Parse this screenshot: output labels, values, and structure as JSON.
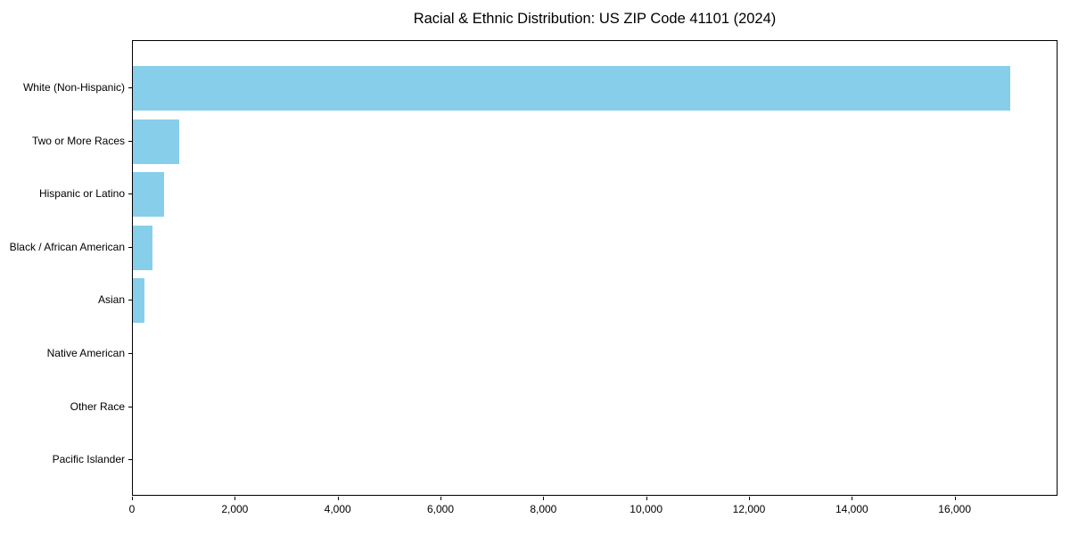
{
  "title": "Racial & Ethnic Distribution: US ZIP Code 41101 (2024)",
  "chart_data": {
    "type": "bar",
    "orientation": "horizontal",
    "title": "Racial & Ethnic Distribution: US ZIP Code 41101 (2024)",
    "categories": [
      "White (Non-Hispanic)",
      "Two or More Races",
      "Hispanic or Latino",
      "Black / African American",
      "Asian",
      "Native American",
      "Other Race",
      "Pacific Islander"
    ],
    "values": [
      17100,
      910,
      600,
      390,
      230,
      0,
      0,
      0
    ],
    "xlabel": "",
    "ylabel": "",
    "xlim": [
      0,
      18000
    ],
    "xticks": [
      0,
      2000,
      4000,
      6000,
      8000,
      10000,
      12000,
      14000,
      16000
    ],
    "xtick_labels": [
      "0",
      "2,000",
      "4,000",
      "6,000",
      "8,000",
      "10,000",
      "12,000",
      "14,000",
      "16,000"
    ],
    "bar_color": "#87CEEB",
    "axis_color": "#000000",
    "background_color": "#ffffff",
    "grid": false,
    "legend": null
  }
}
